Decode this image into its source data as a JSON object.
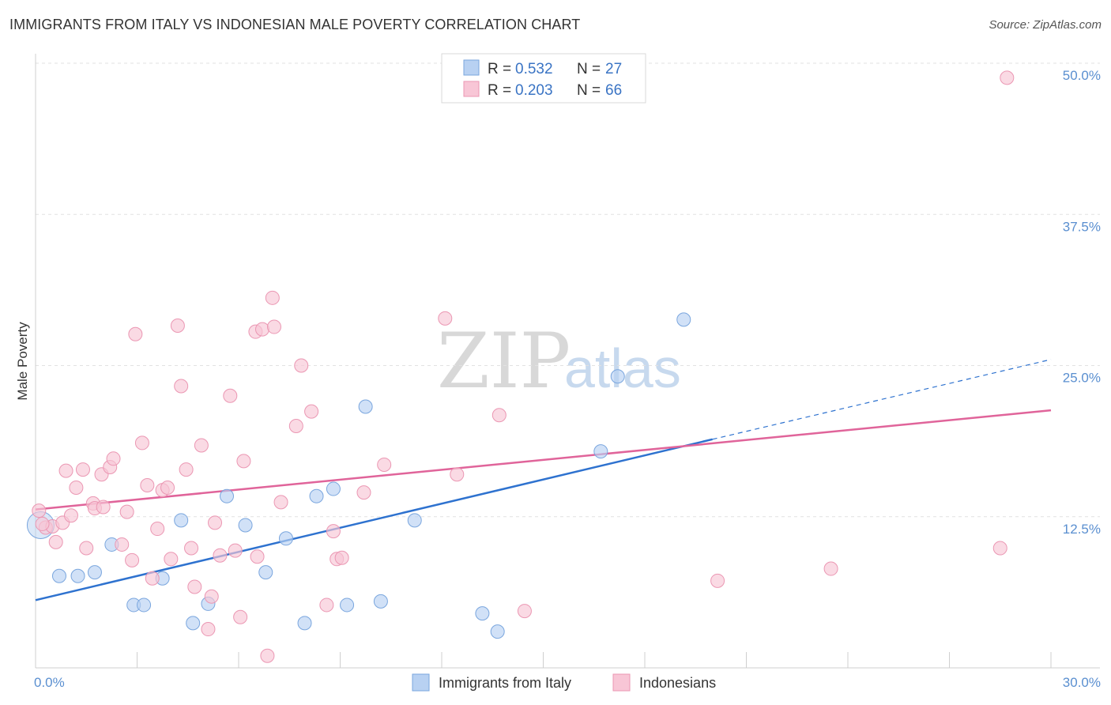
{
  "title": "IMMIGRANTS FROM ITALY VS INDONESIAN MALE POVERTY CORRELATION CHART",
  "source": "Source: ZipAtlas.com",
  "watermark": {
    "part1": "ZIP",
    "part2": "atlas"
  },
  "legend": {
    "rows": [
      {
        "r_label": "R =",
        "r_value": "0.532",
        "n_label": "N =",
        "n_value": "27",
        "color": "#b8d1f2",
        "stroke": "#7aa6de"
      },
      {
        "r_label": "R =",
        "r_value": "0.203",
        "n_label": "N =",
        "n_value": "66",
        "color": "#f8c6d6",
        "stroke": "#eb97b3"
      }
    ]
  },
  "bottom_legend": {
    "items": [
      {
        "label": "Immigrants from Italy",
        "color": "#b8d1f2",
        "stroke": "#7aa6de"
      },
      {
        "label": "Indonesians",
        "color": "#f8c6d6",
        "stroke": "#eb97b3"
      }
    ]
  },
  "chart_data": {
    "type": "scatter",
    "title": "IMMIGRANTS FROM ITALY VS INDONESIAN MALE POVERTY CORRELATION CHART",
    "xlabel": "",
    "ylabel": "Male Poverty",
    "xlim": [
      0,
      30
    ],
    "ylim": [
      0,
      50
    ],
    "x_tick_labels": [
      "0.0%",
      "30.0%"
    ],
    "y_ticks": [
      12.5,
      25.0,
      37.5,
      50.0
    ],
    "y_tick_labels": [
      "12.5%",
      "25.0%",
      "37.5%",
      "50.0%"
    ],
    "grid": true,
    "legend_position": "top-center",
    "series": [
      {
        "name": "Immigrants from Italy",
        "color": "#7aa6de",
        "fill": "#b8d1f2",
        "line_color": "#2e72cf",
        "trend": {
          "x": [
            0,
            20.0
          ],
          "y": [
            5.6,
            18.9
          ],
          "dashed_to": [
            30.0,
            25.5
          ]
        },
        "points": [
          [
            0.15,
            11.8
          ],
          [
            0.7,
            7.6
          ],
          [
            1.25,
            7.6
          ],
          [
            1.75,
            7.9
          ],
          [
            2.25,
            10.2
          ],
          [
            2.9,
            5.2
          ],
          [
            3.2,
            5.2
          ],
          [
            3.75,
            7.4
          ],
          [
            4.3,
            12.2
          ],
          [
            4.65,
            3.7
          ],
          [
            5.1,
            5.3
          ],
          [
            5.65,
            14.2
          ],
          [
            6.2,
            11.8
          ],
          [
            6.8,
            7.9
          ],
          [
            7.4,
            10.7
          ],
          [
            7.95,
            3.7
          ],
          [
            8.3,
            14.2
          ],
          [
            8.8,
            14.8
          ],
          [
            9.2,
            5.2
          ],
          [
            9.75,
            21.6
          ],
          [
            10.2,
            5.5
          ],
          [
            11.2,
            12.2
          ],
          [
            13.2,
            4.5
          ],
          [
            13.65,
            3.0
          ],
          [
            16.7,
            17.9
          ],
          [
            17.2,
            24.1
          ],
          [
            19.15,
            28.8
          ]
        ]
      },
      {
        "name": "Indonesians",
        "color": "#eb97b3",
        "fill": "#f8c6d6",
        "line_color": "#e0649a",
        "trend": {
          "x": [
            0,
            30.0
          ],
          "y": [
            13.1,
            21.3
          ]
        },
        "points": [
          [
            0.1,
            13.0
          ],
          [
            0.3,
            11.6
          ],
          [
            0.5,
            11.7
          ],
          [
            0.6,
            10.4
          ],
          [
            0.8,
            12.0
          ],
          [
            0.9,
            16.3
          ],
          [
            1.05,
            12.6
          ],
          [
            1.2,
            14.9
          ],
          [
            1.4,
            16.4
          ],
          [
            1.5,
            9.9
          ],
          [
            1.7,
            13.6
          ],
          [
            1.75,
            13.2
          ],
          [
            1.95,
            16.0
          ],
          [
            2.0,
            13.3
          ],
          [
            2.2,
            16.6
          ],
          [
            2.3,
            17.3
          ],
          [
            2.55,
            10.2
          ],
          [
            2.7,
            12.9
          ],
          [
            2.85,
            8.9
          ],
          [
            2.95,
            27.6
          ],
          [
            3.15,
            18.6
          ],
          [
            3.3,
            15.1
          ],
          [
            3.45,
            7.4
          ],
          [
            3.6,
            11.5
          ],
          [
            3.75,
            14.7
          ],
          [
            3.9,
            14.9
          ],
          [
            4.0,
            9.0
          ],
          [
            4.2,
            28.3
          ],
          [
            4.3,
            23.3
          ],
          [
            4.45,
            16.4
          ],
          [
            4.6,
            9.9
          ],
          [
            4.7,
            6.7
          ],
          [
            4.9,
            18.4
          ],
          [
            5.1,
            3.2
          ],
          [
            5.2,
            5.9
          ],
          [
            5.3,
            12.0
          ],
          [
            5.45,
            9.3
          ],
          [
            5.75,
            22.5
          ],
          [
            5.9,
            9.7
          ],
          [
            6.05,
            4.2
          ],
          [
            6.15,
            17.1
          ],
          [
            6.5,
            27.8
          ],
          [
            6.55,
            9.2
          ],
          [
            6.7,
            28.0
          ],
          [
            6.85,
            1.0
          ],
          [
            7.0,
            30.6
          ],
          [
            7.05,
            28.2
          ],
          [
            7.25,
            13.7
          ],
          [
            7.7,
            20.0
          ],
          [
            7.85,
            25.0
          ],
          [
            8.15,
            21.2
          ],
          [
            8.6,
            5.2
          ],
          [
            8.8,
            11.3
          ],
          [
            8.9,
            9.0
          ],
          [
            9.05,
            9.1
          ],
          [
            9.7,
            14.5
          ],
          [
            10.3,
            16.8
          ],
          [
            12.1,
            28.9
          ],
          [
            12.45,
            16.0
          ],
          [
            13.7,
            20.9
          ],
          [
            14.45,
            4.7
          ],
          [
            20.15,
            7.2
          ],
          [
            23.5,
            8.2
          ],
          [
            28.5,
            9.9
          ],
          [
            28.7,
            48.8
          ],
          [
            0.2,
            11.9
          ]
        ]
      }
    ]
  }
}
